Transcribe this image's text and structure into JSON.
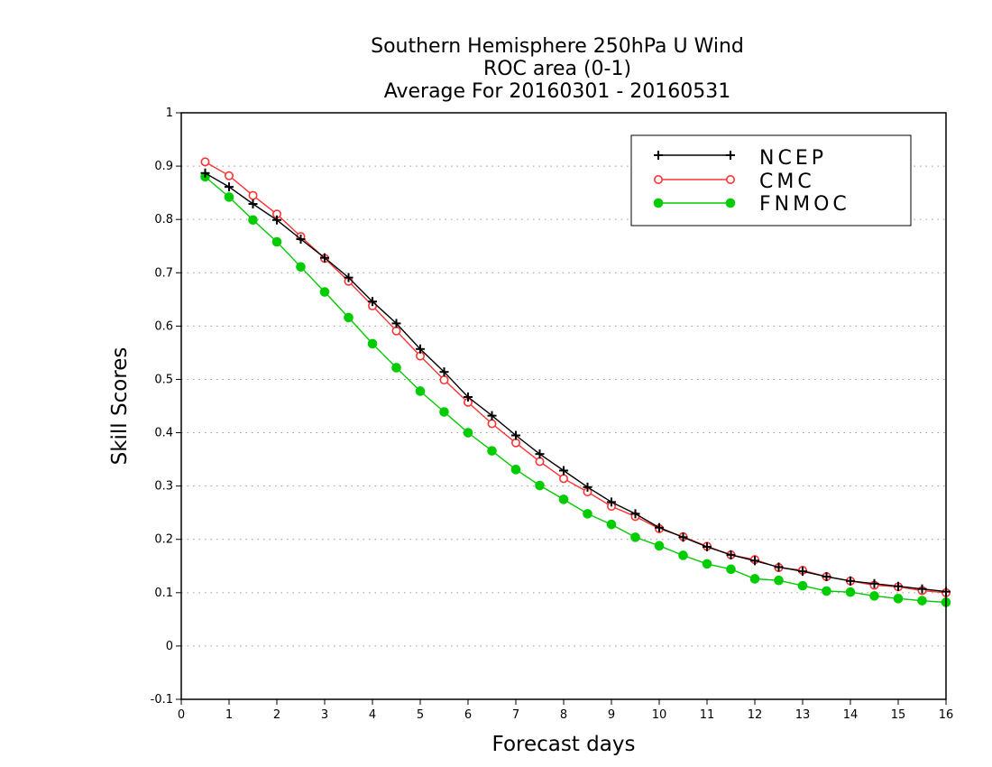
{
  "chart_data": {
    "type": "line",
    "title_lines": [
      "Southern Hemisphere 250hPa U Wind",
      "ROC area (0-1)",
      "Average For 20160301 - 20160531"
    ],
    "xlabel": "Forecast days",
    "ylabel": "Skill Scores",
    "xlim": [
      0,
      16
    ],
    "ylim": [
      -0.1,
      1
    ],
    "x_ticks": [
      0,
      1,
      2,
      3,
      4,
      5,
      6,
      7,
      8,
      9,
      10,
      11,
      12,
      13,
      14,
      15,
      16
    ],
    "x_tick_labels": [
      "0",
      "1",
      "2",
      "3",
      "4",
      "5",
      "6",
      "7",
      "8",
      "9",
      "10",
      "11",
      "12",
      "13",
      "14",
      "15",
      "16"
    ],
    "y_ticks": [
      -0.1,
      0,
      0.1,
      0.2,
      0.3,
      0.4,
      0.5,
      0.6,
      0.7,
      0.8,
      0.9,
      1
    ],
    "y_tick_labels": [
      "-0.1",
      "0",
      "0.1",
      "0.2",
      "0.3",
      "0.4",
      "0.5",
      "0.6",
      "0.7",
      "0.8",
      "0.9",
      "1"
    ],
    "grid": "horizontal dotted",
    "legend_position": "top-right",
    "x": [
      0.5,
      1,
      1.5,
      2,
      2.5,
      3,
      3.5,
      4,
      4.5,
      5,
      5.5,
      6,
      6.5,
      7,
      7.5,
      8,
      8.5,
      9,
      9.5,
      10,
      10.5,
      11,
      11.5,
      12,
      12.5,
      13,
      13.5,
      14,
      14.5,
      15,
      15.5,
      16
    ],
    "series": [
      {
        "name": "NCEP",
        "color": "#000000",
        "marker": "plus",
        "values": [
          0.887,
          0.861,
          0.829,
          0.799,
          0.763,
          0.728,
          0.691,
          0.646,
          0.605,
          0.557,
          0.514,
          0.467,
          0.432,
          0.395,
          0.36,
          0.329,
          0.298,
          0.27,
          0.248,
          0.222,
          0.204,
          0.186,
          0.171,
          0.16,
          0.148,
          0.14,
          0.13,
          0.122,
          0.117,
          0.112,
          0.107,
          0.102
        ]
      },
      {
        "name": "CMC",
        "color": "#ff3333",
        "marker": "open-circle",
        "values": [
          0.908,
          0.882,
          0.845,
          0.81,
          0.768,
          0.727,
          0.684,
          0.638,
          0.591,
          0.544,
          0.499,
          0.457,
          0.417,
          0.381,
          0.346,
          0.314,
          0.289,
          0.262,
          0.243,
          0.22,
          0.205,
          0.187,
          0.171,
          0.162,
          0.147,
          0.142,
          0.13,
          0.122,
          0.114,
          0.111,
          0.104,
          0.1
        ]
      },
      {
        "name": "FNMOC",
        "color": "#00cc00",
        "marker": "filled-circle",
        "values": [
          0.88,
          0.842,
          0.799,
          0.758,
          0.711,
          0.664,
          0.616,
          0.567,
          0.522,
          0.478,
          0.439,
          0.4,
          0.366,
          0.331,
          0.301,
          0.275,
          0.248,
          0.228,
          0.204,
          0.188,
          0.17,
          0.154,
          0.144,
          0.126,
          0.123,
          0.113,
          0.103,
          0.101,
          0.094,
          0.089,
          0.085,
          0.082
        ]
      }
    ]
  }
}
